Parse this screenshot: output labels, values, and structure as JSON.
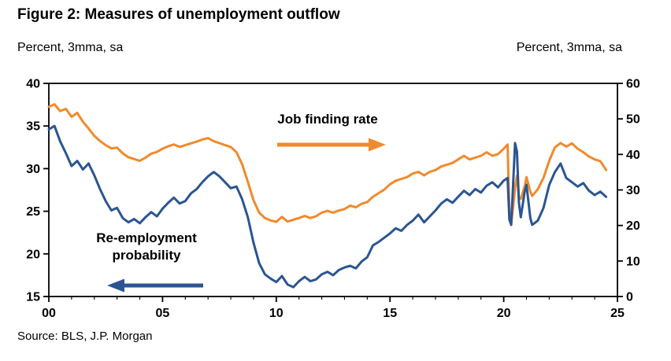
{
  "figure": {
    "title": "Figure 2: Measures of unemployment outflow",
    "left_axis_caption": "Percent, 3mma, sa",
    "right_axis_caption": "Percent, 3mma, sa",
    "source": "Source: BLS, J.P. Morgan"
  },
  "annotations": {
    "job_finding_label": "Job finding rate",
    "reemployment_label_line1": "Re-employment",
    "reemployment_label_line2": "probability"
  },
  "colors": {
    "job_finding": "#F08A2C",
    "reemployment": "#2B5592",
    "axis": "#000000"
  },
  "chart_data": {
    "type": "line",
    "title": "Figure 2: Measures of unemployment outflow",
    "x_range": [
      2000,
      2025
    ],
    "x_ticks": {
      "values": [
        2000,
        2005,
        2010,
        2015,
        2020,
        2025
      ],
      "labels": [
        "00",
        "05",
        "10",
        "15",
        "20",
        "25"
      ]
    },
    "left_axis": {
      "caption": "Percent, 3mma, sa",
      "range": [
        15,
        40
      ],
      "ticks": [
        15,
        20,
        25,
        30,
        35,
        40
      ],
      "labels": [
        "15",
        "20",
        "25",
        "30",
        "35",
        "40"
      ]
    },
    "right_axis": {
      "caption": "Percent, 3mma, sa",
      "range": [
        0,
        60
      ],
      "ticks": [
        0,
        10,
        20,
        30,
        40,
        50,
        60
      ],
      "labels": [
        "0",
        "10",
        "20",
        "30",
        "40",
        "50",
        "60"
      ]
    },
    "x": [
      2000.0,
      2000.25,
      2000.5,
      2000.75,
      2001.0,
      2001.25,
      2001.5,
      2001.75,
      2002.0,
      2002.25,
      2002.5,
      2002.75,
      2003.0,
      2003.25,
      2003.5,
      2003.75,
      2004.0,
      2004.25,
      2004.5,
      2004.75,
      2005.0,
      2005.25,
      2005.5,
      2005.75,
      2006.0,
      2006.25,
      2006.5,
      2006.75,
      2007.0,
      2007.25,
      2007.5,
      2007.75,
      2008.0,
      2008.25,
      2008.5,
      2008.75,
      2009.0,
      2009.25,
      2009.5,
      2009.75,
      2010.0,
      2010.25,
      2010.5,
      2010.75,
      2011.0,
      2011.25,
      2011.5,
      2011.75,
      2012.0,
      2012.25,
      2012.5,
      2012.75,
      2013.0,
      2013.25,
      2013.5,
      2013.75,
      2014.0,
      2014.25,
      2014.5,
      2014.75,
      2015.0,
      2015.25,
      2015.5,
      2015.75,
      2016.0,
      2016.25,
      2016.5,
      2016.75,
      2017.0,
      2017.25,
      2017.5,
      2017.75,
      2018.0,
      2018.25,
      2018.5,
      2018.75,
      2019.0,
      2019.25,
      2019.5,
      2019.75,
      2020.0,
      2020.17,
      2020.25,
      2020.33,
      2020.42,
      2020.5,
      2020.58,
      2020.67,
      2020.75,
      2020.92,
      2021.0,
      2021.17,
      2021.25,
      2021.5,
      2021.75,
      2022.0,
      2022.25,
      2022.5,
      2022.75,
      2023.0,
      2023.25,
      2023.5,
      2023.75,
      2024.0,
      2024.25,
      2024.5
    ],
    "series": [
      {
        "id": "job-finding-rate",
        "name": "Job finding rate",
        "axis": "right",
        "color": "#F08A2C",
        "y": [
          53.4,
          54.1,
          52.2,
          52.8,
          50.6,
          51.7,
          49.2,
          47.3,
          45.2,
          43.8,
          42.6,
          41.7,
          41.9,
          40.3,
          39.2,
          38.7,
          38.2,
          39.1,
          40.2,
          40.7,
          41.6,
          42.3,
          42.8,
          42.1,
          42.6,
          43.1,
          43.6,
          44.2,
          44.6,
          43.7,
          43.2,
          42.6,
          42.1,
          40.6,
          37.2,
          32.3,
          27.1,
          23.6,
          22.1,
          21.4,
          21.0,
          22.4,
          21.1,
          21.6,
          22.1,
          22.7,
          22.1,
          22.6,
          23.6,
          24.1,
          23.6,
          24.2,
          24.6,
          25.6,
          25.1,
          26.1,
          26.6,
          28.1,
          29.1,
          30.1,
          31.6,
          32.6,
          33.1,
          33.6,
          34.6,
          35.1,
          34.1,
          35.1,
          35.6,
          36.6,
          37.1,
          37.6,
          38.6,
          39.6,
          38.6,
          39.1,
          39.6,
          40.6,
          39.6,
          40.1,
          41.6,
          42.8,
          24.0,
          20.6,
          25.5,
          30.5,
          34.0,
          28.0,
          27.5,
          31.0,
          33.6,
          29.5,
          28.3,
          30.2,
          33.4,
          38.2,
          42.0,
          43.2,
          42.2,
          43.1,
          41.6,
          40.6,
          39.4,
          38.6,
          38.1,
          35.6
        ]
      },
      {
        "id": "reemployment-probability",
        "name": "Re-employment probability",
        "axis": "left",
        "color": "#2B5592",
        "y": [
          34.6,
          35.0,
          33.2,
          31.8,
          30.3,
          30.9,
          29.9,
          30.6,
          29.2,
          27.6,
          26.2,
          25.1,
          25.4,
          24.2,
          23.7,
          24.1,
          23.6,
          24.3,
          24.9,
          24.4,
          25.3,
          26.0,
          26.6,
          25.9,
          26.2,
          27.1,
          27.6,
          28.4,
          29.1,
          29.6,
          29.1,
          28.4,
          27.7,
          27.9,
          26.4,
          24.3,
          21.3,
          18.9,
          17.6,
          17.1,
          16.7,
          17.4,
          16.4,
          16.1,
          16.8,
          17.3,
          16.8,
          17.0,
          17.6,
          17.9,
          17.5,
          18.1,
          18.4,
          18.6,
          18.3,
          19.1,
          19.6,
          21.0,
          21.4,
          21.9,
          22.4,
          23.0,
          22.7,
          23.4,
          23.9,
          24.6,
          23.7,
          24.4,
          25.1,
          25.9,
          26.4,
          26.0,
          26.7,
          27.4,
          26.9,
          27.6,
          27.2,
          28.0,
          28.4,
          27.8,
          28.6,
          28.9,
          24.0,
          23.4,
          28.5,
          33.0,
          32.0,
          26.0,
          24.3,
          27.3,
          28.1,
          24.2,
          23.4,
          23.9,
          25.4,
          28.1,
          29.6,
          30.6,
          28.9,
          28.4,
          27.9,
          28.3,
          27.4,
          26.9,
          27.3,
          26.7
        ]
      }
    ]
  }
}
